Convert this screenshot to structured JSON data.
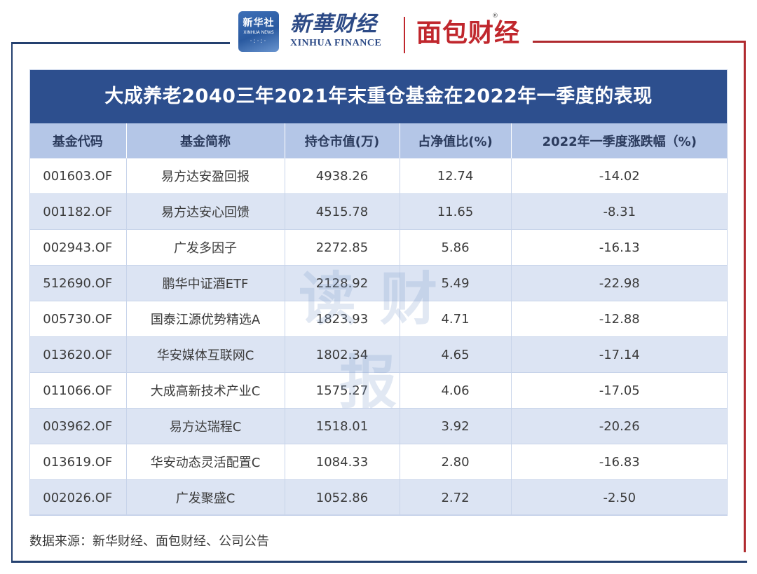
{
  "header": {
    "xinhua_box_cn": "新华社",
    "xinhua_box_en": "XINHUA NEWS",
    "xinhua_finance_cn": "新華财经",
    "xinhua_finance_en": "XINHUA FINANCE",
    "mianbao_logo": "面包财经",
    "registered_mark": "®"
  },
  "table": {
    "title": "大成养老2040三年2021年末重仓基金在2022年一季度的表现",
    "columns": [
      "基金代码",
      "基金简称",
      "持仓市值(万)",
      "占净值比(%)",
      "2022年一季度涨跌幅（%)"
    ],
    "rows": [
      [
        "001603.OF",
        "易方达安盈回报",
        "4938.26",
        "12.74",
        "-14.02"
      ],
      [
        "001182.OF",
        "易方达安心回馈",
        "4515.78",
        "11.65",
        "-8.31"
      ],
      [
        "002943.OF",
        "广发多因子",
        "2272.85",
        "5.86",
        "-16.13"
      ],
      [
        "512690.OF",
        "鹏华中证酒ETF",
        "2128.92",
        "5.49",
        "-22.98"
      ],
      [
        "005730.OF",
        "国泰江源优势精选A",
        "1823.93",
        "4.71",
        "-12.88"
      ],
      [
        "013620.OF",
        "华安媒体互联网C",
        "1802.34",
        "4.65",
        "-17.14"
      ],
      [
        "011066.OF",
        "大成高新技术产业C",
        "1575.27",
        "4.06",
        "-17.05"
      ],
      [
        "003962.OF",
        "易方达瑞程C",
        "1518.01",
        "3.92",
        "-20.26"
      ],
      [
        "013619.OF",
        "华安动态灵活配置C",
        "1084.33",
        "2.80",
        "-16.83"
      ],
      [
        "002026.OF",
        "广发聚盛C",
        "1052.86",
        "2.72",
        "-2.50"
      ]
    ]
  },
  "watermark": "读财报",
  "source": "数据来源：新华财经、面包财经、公司公告",
  "colors": {
    "title_bar": "#2d4f8e",
    "header_row": "#b4c6e7",
    "stripe_row": "#dce4f3",
    "frame_blue": "#24406f",
    "frame_red": "#b02a2f"
  }
}
